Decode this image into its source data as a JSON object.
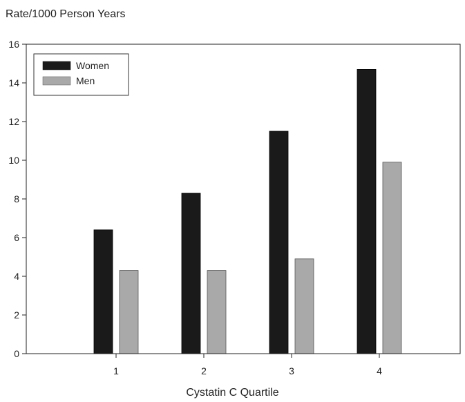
{
  "chart_data": {
    "type": "bar",
    "title": "",
    "ylabel": "Rate/1000 Person Years",
    "xlabel": "Cystatin C Quartile",
    "categories": [
      "1",
      "2",
      "3",
      "4"
    ],
    "series": [
      {
        "name": "Women",
        "values": [
          6.4,
          8.3,
          11.5,
          14.7
        ],
        "color": "#1a1a1a"
      },
      {
        "name": "Men",
        "values": [
          4.3,
          4.3,
          4.9,
          9.9
        ],
        "color": "#a9a9a9"
      }
    ],
    "ylim": [
      0,
      16
    ],
    "yticks": [
      0,
      2,
      4,
      6,
      8,
      10,
      12,
      14,
      16
    ],
    "grid": false,
    "legend": "top-left"
  }
}
